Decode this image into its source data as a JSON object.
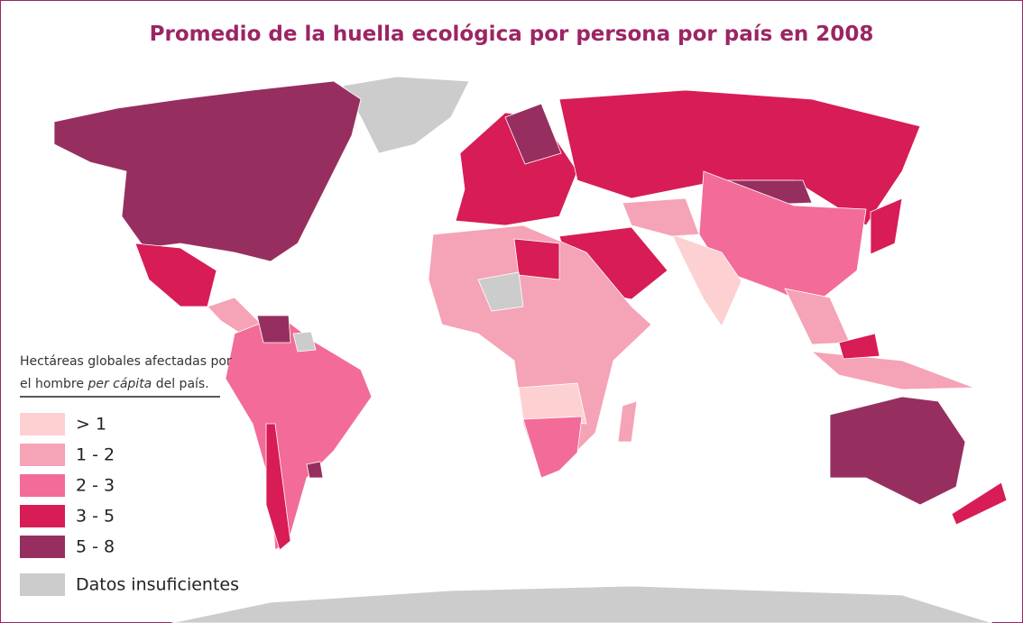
{
  "title": "Promedio de la huella ecológica por persona por país en 2008",
  "legend": {
    "description": {
      "line1": "Hectáreas globales afectadas por",
      "line2_start": "el hombre",
      "line2_italic": "per cápita",
      "line2_end": "del país."
    },
    "items": [
      {
        "label": "> 1",
        "color": "#fdd0d2"
      },
      {
        "label": "1 - 2",
        "color": "#f5a3b6"
      },
      {
        "label": "2 - 3",
        "color": "#f36b98"
      },
      {
        "label": "3 - 5",
        "color": "#d71c56"
      },
      {
        "label": "5 - 8",
        "color": "#962f60"
      },
      {
        "label": "Datos insuficientes",
        "color": "#cccccc"
      }
    ]
  }
}
